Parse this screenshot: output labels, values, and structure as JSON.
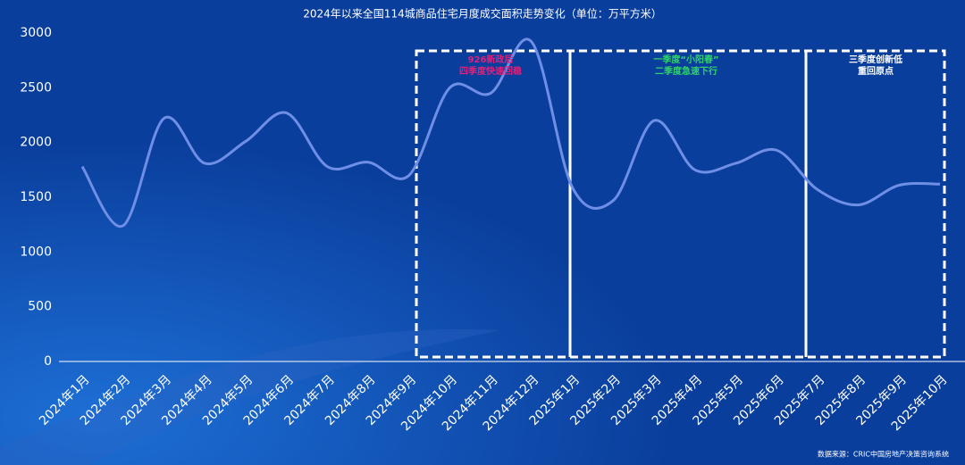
{
  "chart_data": {
    "type": "line",
    "title": "2024年以来全国114城商品住宅月度成交面积走势变化（单位：万平方米）",
    "categories": [
      "2024年1月",
      "2024年2月",
      "2024年3月",
      "2024年4月",
      "2024年5月",
      "2024年6月",
      "2024年7月",
      "2024年8月",
      "2024年9月",
      "2024年10月",
      "2024年11月",
      "2024年12月",
      "2025年1月",
      "2025年2月",
      "2025年3月",
      "2025年4月",
      "2025年5月",
      "2025年6月",
      "2025年7月",
      "2025年8月",
      "2025年9月",
      "2025年10月"
    ],
    "series": [
      {
        "name": "成交面积",
        "color": "#6f8fe6",
        "values": [
          1780,
          1240,
          2220,
          1810,
          2010,
          2270,
          1780,
          1820,
          1700,
          2500,
          2450,
          2920,
          1590,
          1470,
          2200,
          1750,
          1810,
          1930,
          1570,
          1430,
          1610,
          1620
        ]
      }
    ],
    "ylim": [
      0,
      3000
    ],
    "yticks": [
      0,
      500,
      1000,
      1500,
      2000,
      2500,
      3000
    ],
    "annotations": [
      {
        "lines": [
          "926新政后",
          "四季度快速回稳"
        ],
        "color": "#e0207a"
      },
      {
        "lines": [
          "一季度“小阳春”",
          "二季度急速下行"
        ],
        "color": "#2fd36a"
      },
      {
        "lines": [
          "三季度创新低",
          "重回原点"
        ],
        "color": "#ffffff"
      }
    ],
    "source": "数据来源：CRIC中国房地产决策咨询系统"
  }
}
